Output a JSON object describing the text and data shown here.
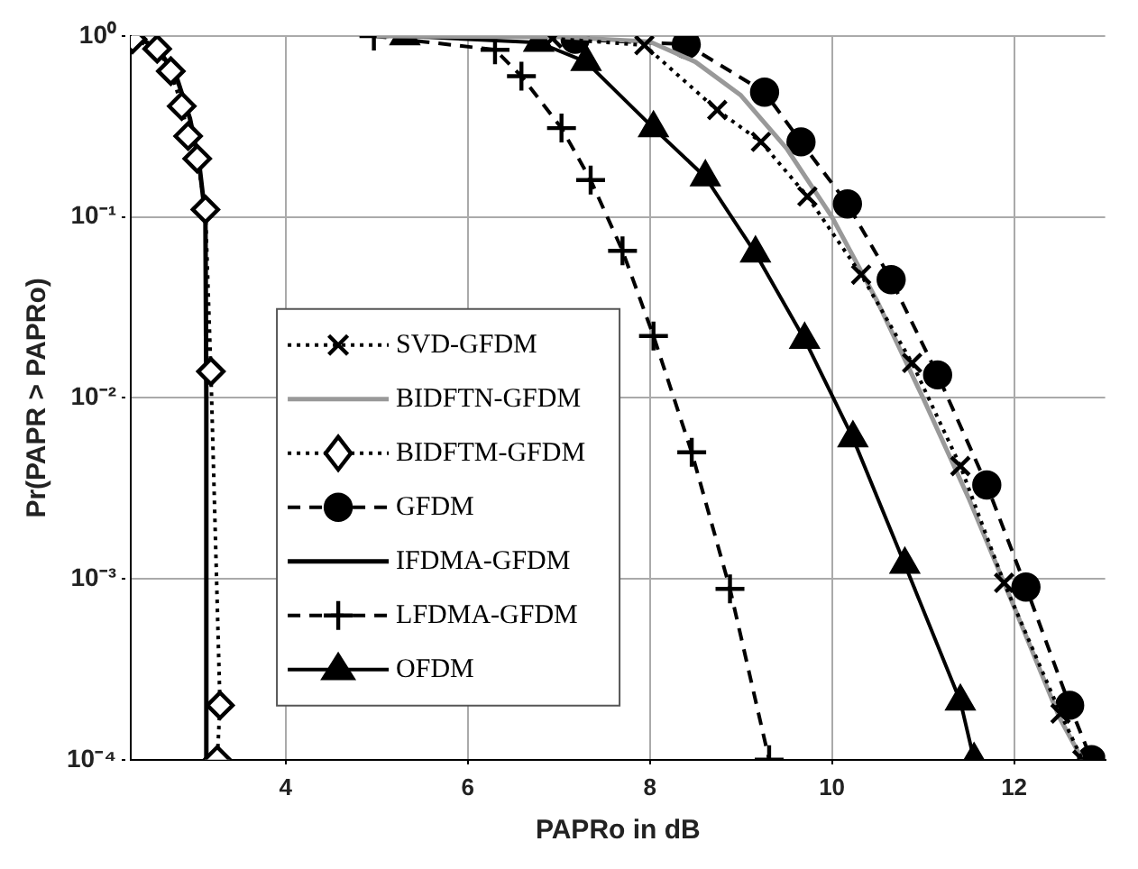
{
  "chart_data": {
    "type": "line",
    "xlabel": "PAPRo in dB",
    "ylabel": "Pr(PAPR > PAPRo)",
    "xlim": [
      2.3,
      13
    ],
    "xticks": [
      4,
      6,
      8,
      10,
      12
    ],
    "ylim": [
      0.0001,
      1
    ],
    "yticks": [
      {
        "value": 1,
        "label": "10⁰"
      },
      {
        "value": 0.1,
        "label": "10⁻¹"
      },
      {
        "value": 0.01,
        "label": "10⁻²"
      },
      {
        "value": 0.001,
        "label": "10⁻³"
      },
      {
        "value": 0.0001,
        "label": "10⁻⁴"
      }
    ],
    "log": "y",
    "grid": true,
    "legend": "bottom left",
    "series": [
      {
        "name": "SVD-GFDM",
        "color": "#000000",
        "marker": "cross",
        "line_style": "dotted",
        "x": [
          6.93,
          7.94,
          8.74,
          9.22,
          9.73,
          10.32,
          10.88,
          11.41,
          11.89,
          12.51,
          12.75
        ],
        "values": [
          0.97,
          0.89,
          0.39,
          0.26,
          0.13,
          0.048,
          0.0156,
          0.0042,
          0.00095,
          0.00018,
          0.0001
        ]
      },
      {
        "name": "BIDFTN-GFDM",
        "color": "#999999",
        "marker": "none",
        "line_style": "solid",
        "x": [
          5,
          7,
          8,
          8.5,
          9,
          9.5,
          10,
          10.5,
          11,
          11.5,
          12,
          12.5,
          12.75
        ],
        "values": [
          1,
          0.99,
          0.93,
          0.72,
          0.47,
          0.24,
          0.1,
          0.034,
          0.01,
          0.0028,
          0.0007,
          0.00017,
          0.0001
        ]
      },
      {
        "name": "BIDFTM-GFDM",
        "color": "#000000",
        "marker": "diamond",
        "line_style": "dotted",
        "x": [
          2.32,
          2.59,
          2.74,
          2.86,
          2.93,
          3.03,
          3.12,
          3.18,
          3.28,
          3.25
        ],
        "values": [
          0.96,
          0.85,
          0.64,
          0.41,
          0.28,
          0.21,
          0.11,
          0.014,
          0.0002,
          0.0001
        ]
      },
      {
        "name": "GFDM",
        "color": "#000000",
        "marker": "circle",
        "line_style": "dashed",
        "x": [
          7.18,
          8.4,
          9.26,
          9.66,
          10.17,
          10.65,
          11.16,
          11.7,
          12.13,
          12.61,
          12.85
        ],
        "values": [
          0.96,
          0.9,
          0.49,
          0.26,
          0.118,
          0.045,
          0.0134,
          0.0033,
          0.0009,
          0.0002,
          0.0001
        ]
      },
      {
        "name": "IFDMA-GFDM",
        "color": "#000000",
        "marker": "none",
        "line_style": "solid",
        "x": [
          2.35,
          2.6,
          2.8,
          2.95,
          3.05,
          3.12,
          3.13,
          3.13
        ],
        "values": [
          1,
          0.85,
          0.6,
          0.35,
          0.2,
          0.1,
          0.01,
          0.0001
        ]
      },
      {
        "name": "LFDMA-GFDM",
        "color": "#000000",
        "marker": "plus",
        "line_style": "dashed",
        "x": [
          4.97,
          6.3,
          6.59,
          7.03,
          7.35,
          7.7,
          8.04,
          8.46,
          8.88,
          9.31
        ],
        "values": [
          1,
          0.84,
          0.6,
          0.31,
          0.16,
          0.065,
          0.022,
          0.005,
          0.00088,
          0.0001
        ]
      },
      {
        "name": "OFDM",
        "color": "#000000",
        "marker": "triangle",
        "line_style": "solid",
        "x": [
          5.31,
          6.78,
          7.3,
          8.04,
          8.61,
          9.16,
          9.7,
          10.23,
          10.8,
          11.41,
          11.56
        ],
        "values": [
          1,
          0.92,
          0.72,
          0.31,
          0.166,
          0.063,
          0.021,
          0.006,
          0.0012,
          0.00021,
          0.0001
        ]
      }
    ]
  }
}
